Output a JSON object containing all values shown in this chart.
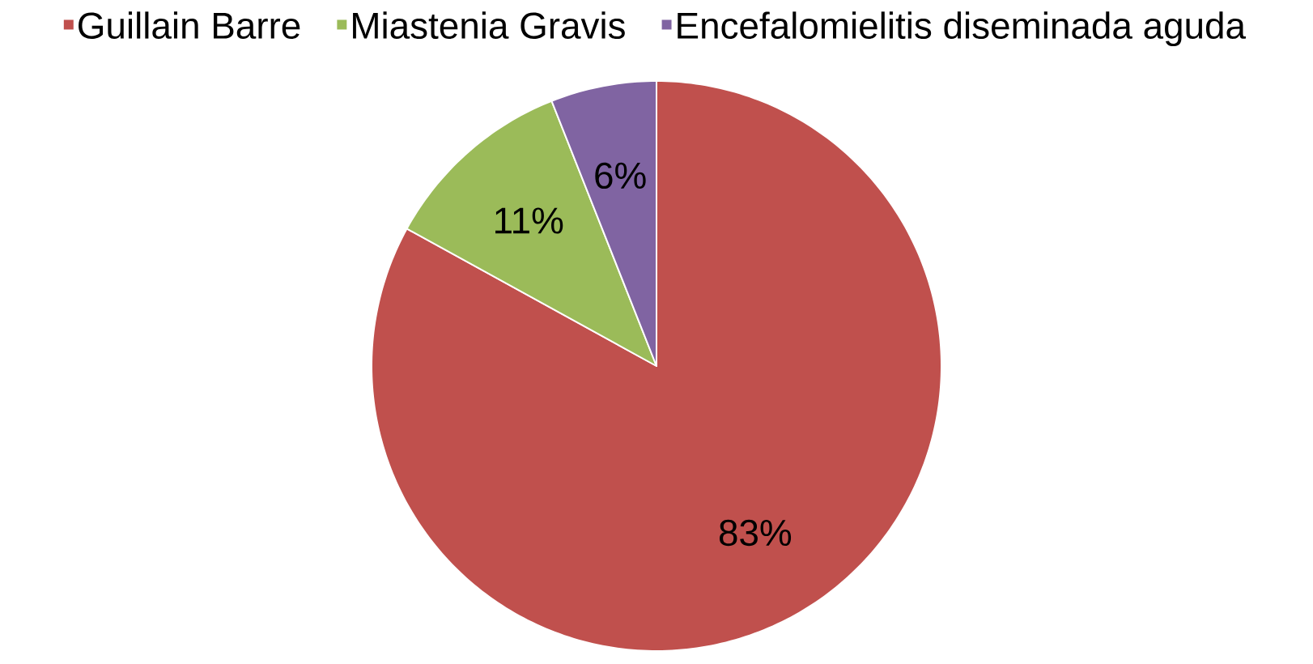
{
  "chart_data": {
    "type": "pie",
    "categories": [
      "Guillain Barre",
      "Miastenia Gravis",
      "Encefalomielitis diseminada aguda"
    ],
    "values": [
      83,
      11,
      6
    ],
    "colors": [
      "#c0504d",
      "#9bbb59",
      "#8064a2"
    ],
    "value_labels": [
      "83%",
      "11%",
      "6%"
    ],
    "legend": "top"
  }
}
